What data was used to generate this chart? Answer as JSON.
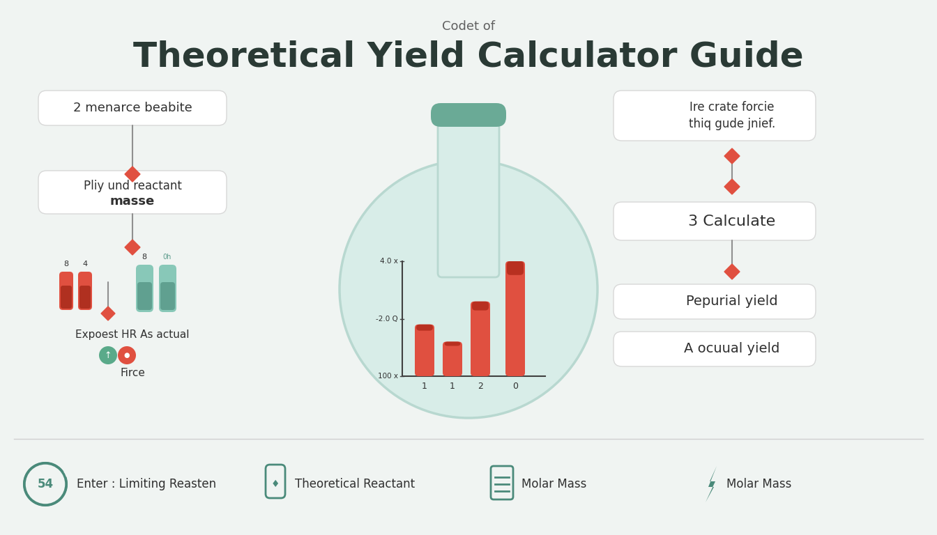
{
  "title_top": "Codet of",
  "title_main": "Theoretical Yield Calculator Guide",
  "bg_color": "#f0f4f2",
  "flask_color": "#d8ede8",
  "flask_neck_color": "#6aaa96",
  "flask_outline": "#b8d8d0",
  "box_bg": "#ffffff",
  "box_border": "#d8d8d8",
  "arrow_color_dark": "#888888",
  "diamond_color": "#e05040",
  "text_dark": "#303030",
  "text_medium": "#606060",
  "teal_dark": "#4a8a7a",
  "tube_red": "#e05040",
  "tube_red_dark": "#c03828",
  "tube_green": "#88c8b8",
  "tube_green_dark": "#60a898",
  "bar_color": "#e05040",
  "bar_color_dark": "#b83020",
  "left_box1": "2 menarce beabite",
  "left_box2_line1": "Pliy und reactant",
  "left_box2_line2": "masse",
  "left_label3": "Expoest HR As actual",
  "left_label4": "Firce",
  "right_box1_line1": "Ire crate forcie",
  "right_box1_line2": "thiq gude jnief.",
  "right_box2": "3 Calculate",
  "right_box3": "Pepurial yield",
  "right_box4": "A ocuual yield",
  "bar_labels": [
    "1",
    "1",
    "2",
    "0"
  ],
  "ytick_labels": [
    "100 x",
    "-2.0 Q",
    "4.0 x"
  ],
  "bottom_labels": [
    "Enter : Limiting Reasten",
    "Theoretical Reactant",
    "Molar Mass",
    "Molar Mass"
  ]
}
